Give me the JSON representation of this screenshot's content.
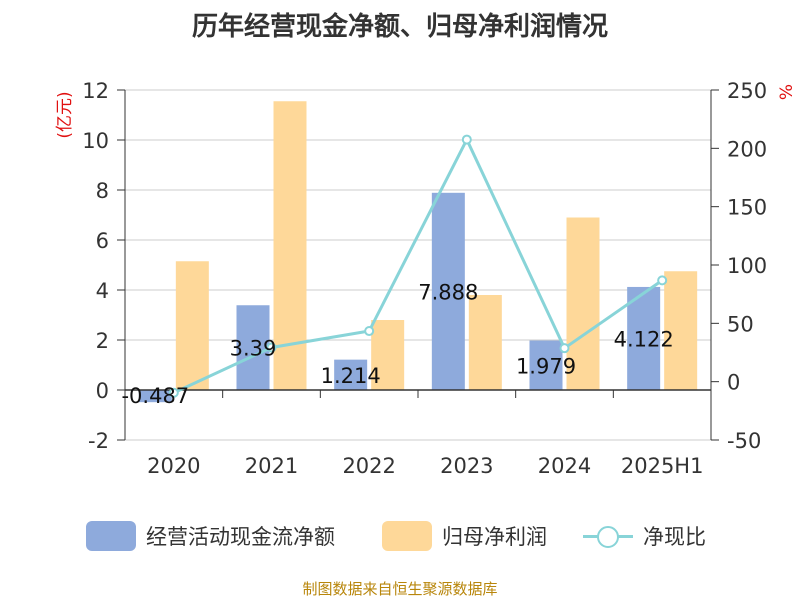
{
  "chart_data": {
    "type": "bar",
    "title": "历年经营现金净额、归母净利润情况",
    "categories": [
      "2020",
      "2021",
      "2022",
      "2023",
      "2024",
      "2025H1"
    ],
    "y_left": {
      "unit_label": "(亿元)",
      "ylim": [
        -2,
        12
      ],
      "ticks": [
        -2,
        0,
        2,
        4,
        6,
        8,
        10,
        12
      ]
    },
    "y_right": {
      "unit_label": "%",
      "ylim": [
        -50,
        250
      ],
      "ticks": [
        -50,
        0,
        50,
        100,
        150,
        200,
        250
      ]
    },
    "series": [
      {
        "name": "经营活动现金流净额",
        "type": "bar",
        "axis": "left",
        "color": "#8eaadc",
        "values": [
          -0.487,
          3.39,
          1.214,
          7.888,
          1.979,
          4.122
        ],
        "labels": [
          "-0.487",
          "3.39",
          "1.214",
          "7.888",
          "1.979",
          "4.122"
        ]
      },
      {
        "name": "归母净利润",
        "type": "bar",
        "axis": "left",
        "color": "#fed899",
        "values": [
          5.15,
          11.55,
          2.8,
          3.8,
          6.9,
          4.75
        ]
      },
      {
        "name": "净现比",
        "type": "line",
        "axis": "right",
        "color": "#88d4d8",
        "values": [
          -9.5,
          29.3,
          43.4,
          207.5,
          28.7,
          86.8
        ]
      }
    ],
    "grid": true,
    "legend_position": "bottom",
    "source": "制图数据来自恒生聚源数据库"
  }
}
